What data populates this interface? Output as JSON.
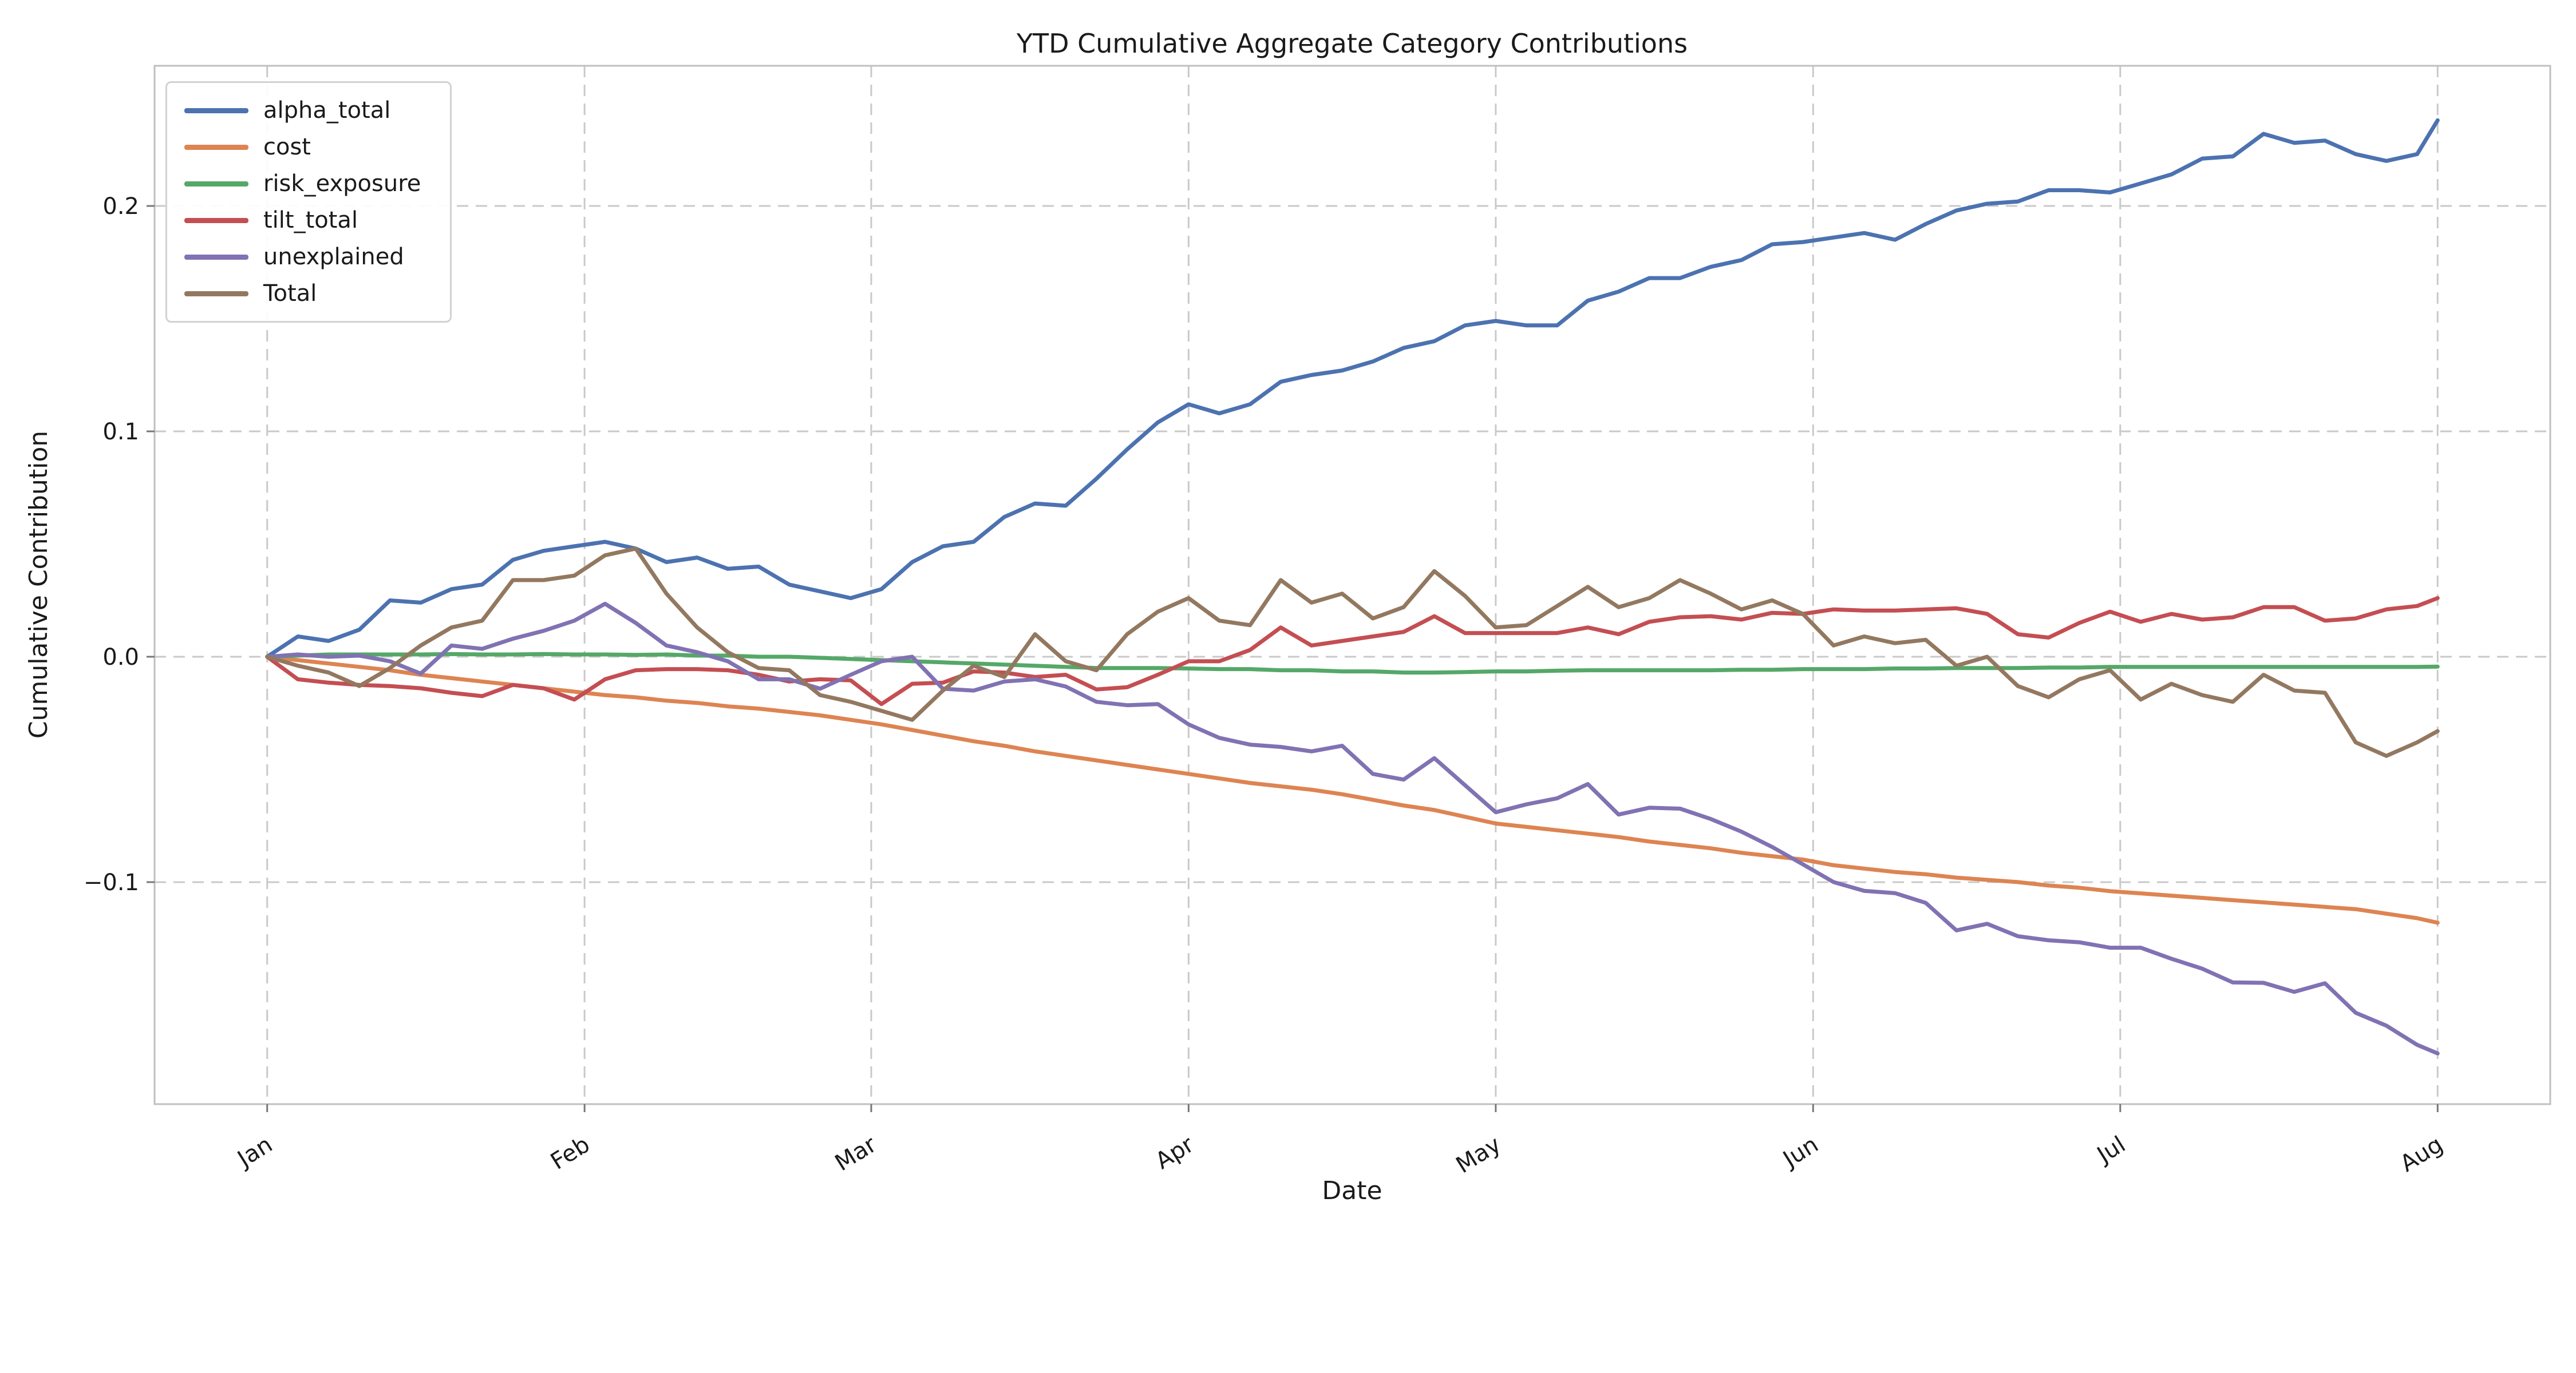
{
  "figure": {
    "background": "#ffffff",
    "text_color": "#1a1a1a",
    "spine_color": "#bfbfbf",
    "grid_color": "#c9c9c9",
    "tick_color": "#777777"
  },
  "chart_data": {
    "type": "line",
    "title": "YTD Cumulative Aggregate Category Contributions",
    "xlabel": "Date",
    "ylabel": "Cumulative Contribution",
    "grid": {
      "on": true,
      "style": "dashed"
    },
    "legend_position": "upper-left",
    "x_unit": "days_since_jan_1",
    "xlim_days": [
      -11.0,
      223.0
    ],
    "ylim": [
      -0.1985,
      0.2622
    ],
    "x_ticks": [
      {
        "label": "Jan",
        "day": 0
      },
      {
        "label": "Feb",
        "day": 31
      },
      {
        "label": "Mar",
        "day": 59
      },
      {
        "label": "Apr",
        "day": 90
      },
      {
        "label": "May",
        "day": 120
      },
      {
        "label": "Jun",
        "day": 151
      },
      {
        "label": "Jul",
        "day": 181
      },
      {
        "label": "Aug",
        "day": 212
      }
    ],
    "y_ticks": [
      {
        "label": "−0.1",
        "value": -0.1
      },
      {
        "label": "0.0",
        "value": 0.0
      },
      {
        "label": "0.1",
        "value": 0.1
      },
      {
        "label": "0.2",
        "value": 0.2
      }
    ],
    "x": [
      0,
      3,
      6,
      9,
      12,
      15,
      18,
      21,
      24,
      27,
      30,
      33,
      36,
      39,
      42,
      45,
      48,
      51,
      54,
      57,
      60,
      63,
      66,
      69,
      72,
      75,
      78,
      81,
      84,
      87,
      90,
      93,
      96,
      99,
      102,
      105,
      108,
      111,
      114,
      117,
      120,
      123,
      126,
      129,
      132,
      135,
      138,
      141,
      144,
      147,
      150,
      153,
      156,
      159,
      162,
      165,
      168,
      171,
      174,
      177,
      180,
      183,
      186,
      189,
      192,
      195,
      198,
      201,
      204,
      207,
      210,
      212
    ],
    "series": [
      {
        "name": "alpha_total",
        "color": "#4C72B0",
        "values": [
          0.0,
          0.009,
          0.007,
          0.012,
          0.025,
          0.024,
          0.03,
          0.032,
          0.043,
          0.047,
          0.049,
          0.051,
          0.048,
          0.042,
          0.044,
          0.039,
          0.04,
          0.032,
          0.029,
          0.026,
          0.03,
          0.042,
          0.049,
          0.051,
          0.062,
          0.068,
          0.067,
          0.079,
          0.092,
          0.104,
          0.112,
          0.108,
          0.112,
          0.122,
          0.125,
          0.127,
          0.131,
          0.137,
          0.14,
          0.147,
          0.149,
          0.147,
          0.147,
          0.158,
          0.162,
          0.168,
          0.168,
          0.173,
          0.176,
          0.183,
          0.184,
          0.186,
          0.188,
          0.185,
          0.192,
          0.198,
          0.201,
          0.202,
          0.207,
          0.207,
          0.206,
          0.21,
          0.214,
          0.221,
          0.222,
          0.232,
          0.228,
          0.229,
          0.223,
          0.22,
          0.223,
          0.238
        ]
      },
      {
        "name": "cost",
        "color": "#DD8452",
        "values": [
          0.0,
          -0.0015,
          -0.003,
          -0.0045,
          -0.006,
          -0.008,
          -0.0095,
          -0.011,
          -0.0125,
          -0.014,
          -0.0155,
          -0.017,
          -0.018,
          -0.0195,
          -0.0205,
          -0.022,
          -0.023,
          -0.0245,
          -0.026,
          -0.028,
          -0.03,
          -0.0325,
          -0.035,
          -0.0375,
          -0.0395,
          -0.042,
          -0.044,
          -0.046,
          -0.048,
          -0.05,
          -0.052,
          -0.054,
          -0.056,
          -0.0575,
          -0.059,
          -0.061,
          -0.0635,
          -0.066,
          -0.068,
          -0.071,
          -0.074,
          -0.0755,
          -0.077,
          -0.0785,
          -0.08,
          -0.082,
          -0.0835,
          -0.085,
          -0.087,
          -0.0885,
          -0.09,
          -0.0925,
          -0.094,
          -0.0955,
          -0.0965,
          -0.098,
          -0.099,
          -0.1,
          -0.1015,
          -0.1025,
          -0.104,
          -0.105,
          -0.106,
          -0.107,
          -0.108,
          -0.109,
          -0.11,
          -0.111,
          -0.112,
          -0.114,
          -0.116,
          -0.118
        ]
      },
      {
        "name": "risk_exposure",
        "color": "#55A868",
        "values": [
          0.0,
          0.0005,
          0.001,
          0.001,
          0.001,
          0.001,
          0.0012,
          0.001,
          0.001,
          0.0012,
          0.001,
          0.001,
          0.0008,
          0.001,
          0.0005,
          0.0005,
          0.0,
          0.0,
          -0.0005,
          -0.001,
          -0.0015,
          -0.002,
          -0.0025,
          -0.003,
          -0.0035,
          -0.004,
          -0.0045,
          -0.005,
          -0.005,
          -0.005,
          -0.0052,
          -0.0055,
          -0.0055,
          -0.006,
          -0.006,
          -0.0065,
          -0.0065,
          -0.007,
          -0.007,
          -0.0068,
          -0.0065,
          -0.0065,
          -0.0062,
          -0.006,
          -0.006,
          -0.006,
          -0.006,
          -0.006,
          -0.0058,
          -0.0058,
          -0.0055,
          -0.0055,
          -0.0055,
          -0.0052,
          -0.0052,
          -0.005,
          -0.005,
          -0.005,
          -0.0048,
          -0.0048,
          -0.0045,
          -0.0045,
          -0.0045,
          -0.0045,
          -0.0045,
          -0.0045,
          -0.0045,
          -0.0045,
          -0.0045,
          -0.0045,
          -0.0045,
          -0.0044
        ]
      },
      {
        "name": "tilt_total",
        "color": "#C44E52",
        "values": [
          0.0,
          -0.01,
          -0.0115,
          -0.0125,
          -0.013,
          -0.014,
          -0.016,
          -0.0175,
          -0.0125,
          -0.014,
          -0.019,
          -0.01,
          -0.006,
          -0.0055,
          -0.0055,
          -0.006,
          -0.008,
          -0.011,
          -0.01,
          -0.0105,
          -0.021,
          -0.012,
          -0.0115,
          -0.0065,
          -0.007,
          -0.009,
          -0.008,
          -0.0145,
          -0.0135,
          -0.008,
          -0.002,
          -0.002,
          0.003,
          0.013,
          0.005,
          0.007,
          0.009,
          0.011,
          0.018,
          0.0105,
          0.0105,
          0.0105,
          0.0105,
          0.013,
          0.01,
          0.0155,
          0.0175,
          0.018,
          0.0165,
          0.0195,
          0.019,
          0.021,
          0.0205,
          0.0205,
          0.021,
          0.0215,
          0.019,
          0.01,
          0.0085,
          0.015,
          0.02,
          0.0155,
          0.019,
          0.0165,
          0.0175,
          0.022,
          0.022,
          0.016,
          0.017,
          0.021,
          0.0225,
          0.026
        ]
      },
      {
        "name": "unexplained",
        "color": "#8172B3",
        "values": [
          0.0,
          0.001,
          0.0,
          0.0005,
          -0.002,
          -0.0075,
          0.005,
          0.0035,
          0.008,
          0.0115,
          0.016,
          0.0235,
          0.015,
          0.005,
          0.002,
          -0.002,
          -0.01,
          -0.01,
          -0.0142,
          -0.008,
          -0.002,
          0.0,
          -0.0142,
          -0.015,
          -0.011,
          -0.01,
          -0.0132,
          -0.02,
          -0.0215,
          -0.021,
          -0.03,
          -0.036,
          -0.039,
          -0.04,
          -0.042,
          -0.0395,
          -0.052,
          -0.0545,
          -0.045,
          -0.057,
          -0.069,
          -0.0655,
          -0.0628,
          -0.0565,
          -0.07,
          -0.067,
          -0.0674,
          -0.072,
          -0.0776,
          -0.0844,
          -0.0921,
          -0.1,
          -0.1039,
          -0.1049,
          -0.1092,
          -0.1214,
          -0.1185,
          -0.124,
          -0.1258,
          -0.1267,
          -0.1291,
          -0.1291,
          -0.134,
          -0.1384,
          -0.1445,
          -0.1447,
          -0.1487,
          -0.1449,
          -0.158,
          -0.1637,
          -0.1722,
          -0.176
        ]
      },
      {
        "name": "Total",
        "color": "#937860",
        "values": [
          0.0,
          -0.004,
          -0.007,
          -0.013,
          -0.005,
          0.005,
          0.013,
          0.016,
          0.034,
          0.034,
          0.036,
          0.045,
          0.048,
          0.028,
          0.013,
          0.002,
          -0.005,
          -0.006,
          -0.017,
          -0.02,
          -0.024,
          -0.028,
          -0.015,
          -0.004,
          -0.009,
          0.01,
          -0.002,
          -0.006,
          0.01,
          0.02,
          0.026,
          0.016,
          0.014,
          0.034,
          0.024,
          0.028,
          0.017,
          0.022,
          0.038,
          0.027,
          0.013,
          0.014,
          0.0225,
          0.031,
          0.022,
          0.026,
          0.034,
          0.028,
          0.021,
          0.025,
          0.019,
          0.005,
          0.009,
          0.006,
          0.0075,
          -0.004,
          0.0,
          -0.013,
          -0.018,
          -0.01,
          -0.006,
          -0.019,
          -0.012,
          -0.017,
          -0.02,
          -0.008,
          -0.015,
          -0.016,
          -0.038,
          -0.044,
          -0.038,
          -0.033
        ]
      }
    ]
  }
}
